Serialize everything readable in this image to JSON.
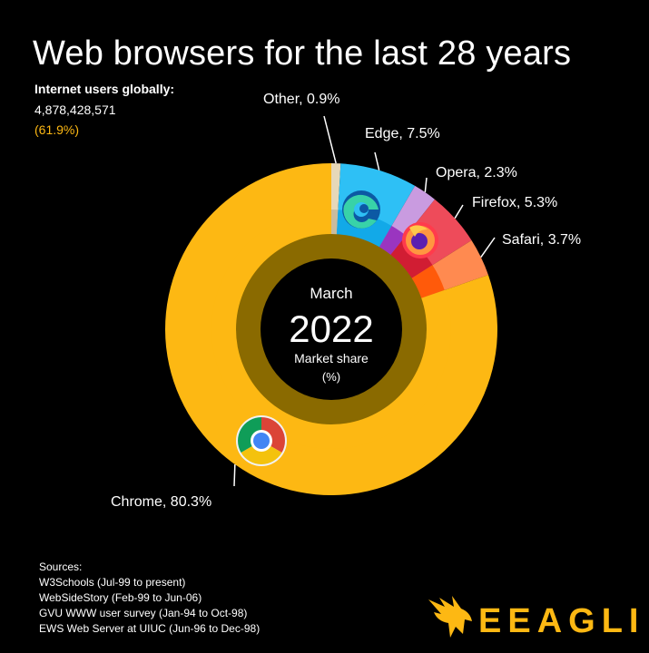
{
  "header": {
    "title": "Web browsers for the last 28 years",
    "users_label": "Internet users globally:",
    "users_count": "4,878,428,571",
    "users_pct": "(61.9%)"
  },
  "center": {
    "month": "March",
    "year": "2022",
    "caption_line1": "Market share",
    "caption_line2": "(%)"
  },
  "chart_data": {
    "type": "pie",
    "title": "Web browsers for the last 28 years",
    "period": "March 2022",
    "unit": "%",
    "slices": [
      {
        "name": "Other",
        "value": 0.9,
        "label": "Other, 0.9%",
        "color": "#E6D8B8",
        "inner_color": "#C9BC9E"
      },
      {
        "name": "Edge",
        "value": 7.5,
        "label": "Edge, 7.5%",
        "color": "#2EC0F5",
        "inner_color": "#12A9E8"
      },
      {
        "name": "Opera",
        "value": 2.3,
        "label": "Opera, 2.3%",
        "color": "#C99BE0",
        "inner_color": "#9A35C0"
      },
      {
        "name": "Firefox",
        "value": 5.3,
        "label": "Firefox, 5.3%",
        "color": "#EE4B5A",
        "inner_color": "#D11D33"
      },
      {
        "name": "Safari",
        "value": 3.7,
        "label": "Safari, 3.7%",
        "color": "#FF8A50",
        "inner_color": "#FF5A0A"
      },
      {
        "name": "Chrome",
        "value": 80.3,
        "label": "Chrome, 80.3%",
        "color": "#FDB813",
        "inner_color": "#FDB813"
      }
    ]
  },
  "sources": {
    "heading": "Sources:",
    "items": [
      "W3Schools (Jul-99 to present)",
      "WebSideStory (Feb-99 to Jun-06)",
      "GVU WWW user survey (Jan-94 to Oct-98)",
      "EWS Web Server at UIUC (Jun-96 to Dec-98)"
    ]
  },
  "brand": {
    "name": "EEAGLI",
    "color": "#FDB813"
  },
  "icons": [
    "edge-icon",
    "firefox-icon",
    "chrome-icon",
    "eagle-logo-icon"
  ]
}
